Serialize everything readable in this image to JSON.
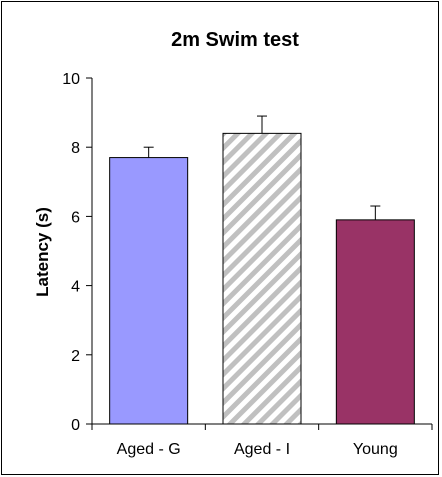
{
  "chart_data": {
    "type": "bar",
    "title": "2m Swim test",
    "xlabel": "",
    "ylabel": "Latency (s)",
    "ylim": [
      0,
      10
    ],
    "yticks": [
      0,
      2,
      4,
      6,
      8,
      10
    ],
    "grid": false,
    "categories": [
      "Aged - G",
      "Aged - I",
      "Young"
    ],
    "values": [
      7.7,
      8.4,
      5.9
    ],
    "errors": [
      0.3,
      0.5,
      0.4
    ],
    "bar_styles": [
      {
        "fill": "#9999ff",
        "pattern": "solid"
      },
      {
        "fill": "#c0c0c0",
        "pattern": "diagonal-stripes"
      },
      {
        "fill": "#993366",
        "pattern": "solid"
      }
    ]
  }
}
